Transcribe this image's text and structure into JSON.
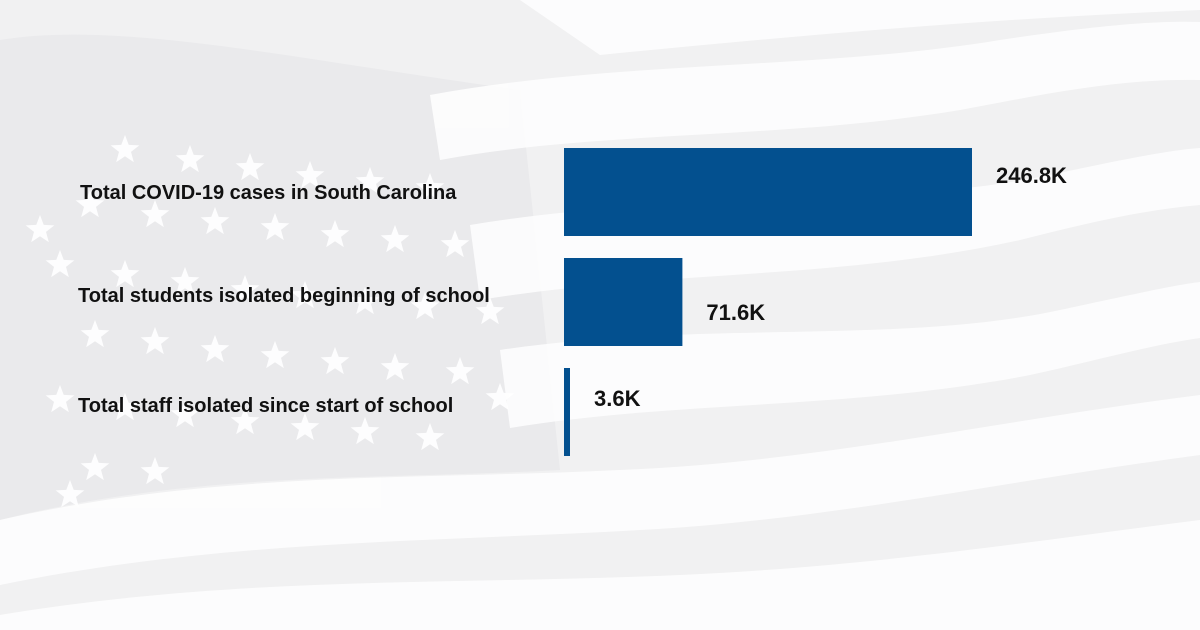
{
  "chart_data": {
    "type": "bar",
    "orientation": "horizontal",
    "categories": [
      "Total COVID-19 cases in South Carolina",
      "Total students isolated beginning of school",
      "Total staff isolated since start of school"
    ],
    "values": [
      246.8,
      71.6,
      3.6
    ],
    "value_unit": "K",
    "value_labels": [
      "246.8K",
      "71.6K",
      "3.6K"
    ],
    "bar_color": "#03508f",
    "title": "",
    "xlabel": "",
    "ylabel": "",
    "xlim": [
      0,
      246.8
    ],
    "grid": false
  },
  "background": {
    "motif": "faded waving flag with stars and stripes",
    "base_color": "#f3f3f4",
    "stripe_color": "#ffffff",
    "star_color": "#ffffff"
  }
}
